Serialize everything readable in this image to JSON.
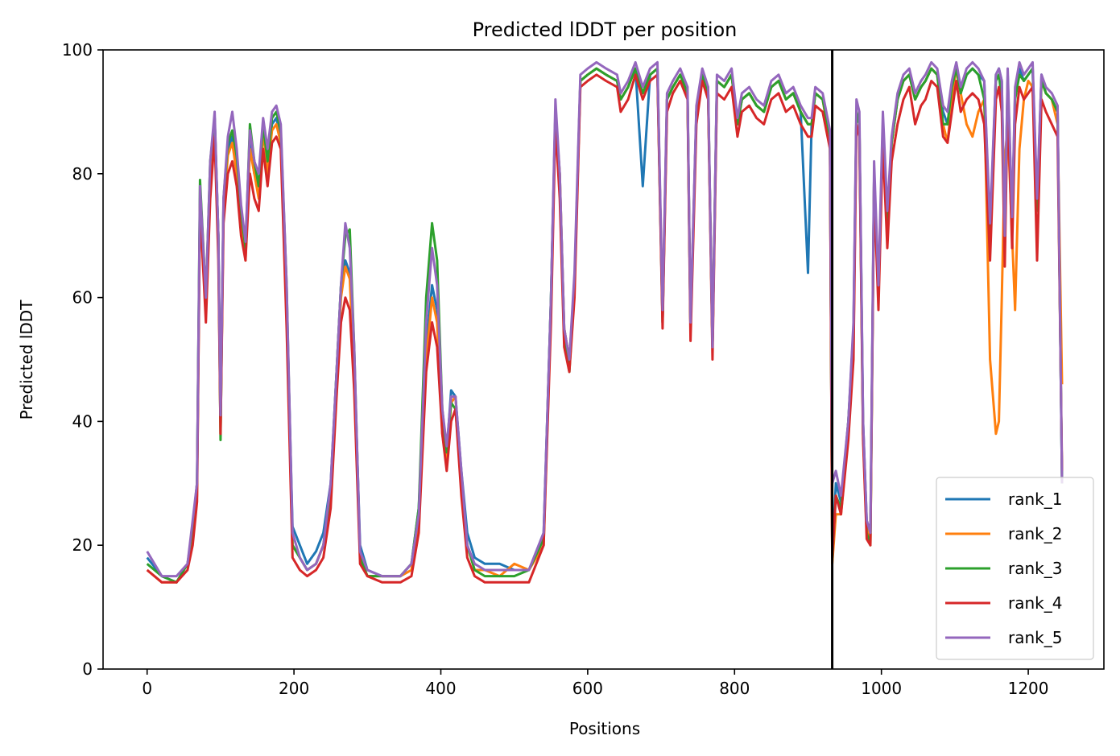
{
  "chart_data": {
    "type": "line",
    "title": "Predicted lDDT per position",
    "xlabel": "Positions",
    "ylabel": "Predicted lDDT",
    "xlim": [
      -60,
      1303
    ],
    "ylim": [
      0,
      100
    ],
    "xticks": [
      0,
      200,
      400,
      600,
      800,
      1000,
      1200
    ],
    "yticks": [
      0,
      20,
      40,
      60,
      80,
      100
    ],
    "grid": false,
    "legend_position": "lower-right",
    "chain_boundary_x": 933,
    "boundary_color": "#000000",
    "x": [
      0,
      20,
      40,
      55,
      62,
      68,
      72,
      80,
      86,
      92,
      97,
      100,
      104,
      110,
      116,
      122,
      128,
      134,
      140,
      146,
      152,
      158,
      164,
      170,
      176,
      182,
      190,
      198,
      208,
      218,
      230,
      240,
      250,
      258,
      264,
      270,
      276,
      282,
      290,
      300,
      320,
      345,
      360,
      370,
      380,
      388,
      395,
      402,
      408,
      414,
      420,
      428,
      436,
      446,
      460,
      480,
      500,
      520,
      540,
      550,
      556,
      562,
      568,
      575,
      582,
      590,
      600,
      612,
      625,
      640,
      645,
      655,
      665,
      675,
      685,
      695,
      702,
      708,
      716,
      726,
      736,
      740,
      748,
      756,
      764,
      770,
      776,
      786,
      796,
      804,
      810,
      820,
      830,
      840,
      850,
      860,
      870,
      880,
      890,
      900,
      905,
      910,
      920,
      930,
      933,
      938,
      945,
      955,
      962,
      966,
      970,
      975,
      980,
      985,
      990,
      996,
      1002,
      1008,
      1014,
      1022,
      1030,
      1038,
      1046,
      1054,
      1060,
      1068,
      1076,
      1084,
      1090,
      1096,
      1102,
      1108,
      1116,
      1124,
      1132,
      1140,
      1148,
      1156,
      1160,
      1164,
      1168,
      1172,
      1178,
      1182,
      1188,
      1194,
      1200,
      1206,
      1212,
      1218,
      1224,
      1232,
      1240,
      1246
    ],
    "series": [
      {
        "name": "rank_1",
        "color": "#1f77b4",
        "values": [
          18,
          15,
          14,
          17,
          22,
          30,
          76,
          60,
          80,
          89,
          70,
          40,
          75,
          84,
          86,
          82,
          74,
          68,
          85,
          80,
          78,
          88,
          82,
          88,
          89,
          86,
          60,
          23,
          20,
          17,
          19,
          22,
          30,
          48,
          62,
          66,
          64,
          50,
          20,
          16,
          15,
          15,
          17,
          26,
          52,
          62,
          58,
          40,
          35,
          45,
          44,
          32,
          22,
          18,
          17,
          17,
          16,
          16,
          22,
          60,
          90,
          80,
          55,
          50,
          62,
          95,
          96,
          97,
          96,
          95,
          92,
          94,
          97,
          78,
          96,
          97,
          56,
          92,
          94,
          96,
          93,
          55,
          90,
          96,
          93,
          52,
          95,
          94,
          96,
          88,
          92,
          93,
          91,
          90,
          94,
          95,
          92,
          93,
          90,
          64,
          88,
          93,
          92,
          86,
          18,
          30,
          27,
          40,
          55,
          90,
          88,
          40,
          24,
          22,
          80,
          60,
          88,
          72,
          85,
          92,
          95,
          96,
          92,
          94,
          95,
          97,
          96,
          90,
          88,
          94,
          97,
          93,
          96,
          97,
          96,
          95,
          70,
          96,
          97,
          95,
          68,
          96,
          72,
          93,
          97,
          95,
          96,
          97,
          75,
          96,
          93,
          92,
          90,
          30
        ]
      },
      {
        "name": "rank_2",
        "color": "#ff7f0e",
        "values": [
          16,
          14,
          14,
          17,
          21,
          28,
          74,
          58,
          78,
          88,
          68,
          38,
          74,
          83,
          85,
          80,
          72,
          66,
          84,
          80,
          76,
          87,
          80,
          87,
          88,
          85,
          58,
          20,
          18,
          16,
          17,
          20,
          28,
          46,
          60,
          65,
          63,
          48,
          18,
          15,
          15,
          15,
          16,
          24,
          50,
          60,
          56,
          38,
          33,
          43,
          44,
          30,
          20,
          16,
          16,
          15,
          17,
          16,
          20,
          58,
          90,
          80,
          55,
          50,
          62,
          95,
          96,
          97,
          96,
          95,
          92,
          94,
          97,
          93,
          96,
          97,
          57,
          92,
          94,
          96,
          93,
          55,
          90,
          96,
          93,
          52,
          95,
          94,
          96,
          88,
          92,
          93,
          91,
          90,
          94,
          95,
          92,
          93,
          90,
          88,
          88,
          93,
          92,
          85,
          17,
          25,
          25,
          38,
          52,
          90,
          88,
          38,
          23,
          20,
          80,
          60,
          88,
          72,
          85,
          92,
          95,
          96,
          92,
          94,
          95,
          97,
          96,
          88,
          85,
          92,
          97,
          93,
          88,
          86,
          90,
          92,
          50,
          38,
          40,
          60,
          82,
          88,
          70,
          58,
          84,
          92,
          95,
          94,
          75,
          95,
          93,
          92,
          88,
          46
        ]
      },
      {
        "name": "rank_3",
        "color": "#2ca02c",
        "values": [
          17,
          15,
          14,
          17,
          23,
          30,
          79,
          60,
          82,
          89,
          70,
          37,
          76,
          85,
          87,
          83,
          74,
          68,
          88,
          82,
          78,
          88,
          82,
          89,
          90,
          87,
          62,
          20,
          18,
          16,
          17,
          20,
          29,
          48,
          62,
          70,
          71,
          52,
          18,
          15,
          15,
          15,
          17,
          26,
          60,
          72,
          66,
          42,
          35,
          43,
          42,
          30,
          20,
          16,
          15,
          15,
          15,
          16,
          21,
          60,
          90,
          78,
          53,
          48,
          62,
          95,
          96,
          97,
          96,
          95,
          92,
          94,
          97,
          93,
          96,
          97,
          56,
          92,
          94,
          96,
          93,
          55,
          90,
          96,
          93,
          52,
          95,
          94,
          96,
          88,
          92,
          93,
          91,
          90,
          94,
          95,
          92,
          93,
          90,
          88,
          88,
          93,
          92,
          86,
          18,
          28,
          26,
          40,
          54,
          90,
          88,
          38,
          22,
          20,
          80,
          60,
          88,
          72,
          85,
          92,
          95,
          96,
          92,
          94,
          95,
          97,
          96,
          88,
          88,
          94,
          97,
          93,
          96,
          97,
          96,
          92,
          70,
          95,
          96,
          92,
          70,
          95,
          72,
          92,
          96,
          95,
          96,
          97,
          74,
          95,
          93,
          92,
          90,
          30
        ]
      },
      {
        "name": "rank_4",
        "color": "#d62728",
        "values": [
          16,
          14,
          14,
          16,
          20,
          27,
          75,
          56,
          76,
          86,
          66,
          38,
          72,
          80,
          82,
          78,
          70,
          66,
          80,
          76,
          74,
          84,
          78,
          85,
          86,
          84,
          55,
          18,
          16,
          15,
          16,
          18,
          26,
          44,
          56,
          60,
          58,
          45,
          17,
          15,
          14,
          14,
          15,
          22,
          48,
          56,
          52,
          38,
          32,
          40,
          42,
          28,
          18,
          15,
          14,
          14,
          14,
          14,
          20,
          56,
          88,
          76,
          52,
          48,
          60,
          94,
          95,
          96,
          95,
          94,
          90,
          92,
          96,
          92,
          95,
          96,
          55,
          90,
          93,
          95,
          92,
          53,
          88,
          95,
          92,
          50,
          93,
          92,
          94,
          86,
          90,
          91,
          89,
          88,
          92,
          93,
          90,
          91,
          88,
          86,
          86,
          91,
          90,
          84,
          18,
          28,
          25,
          37,
          50,
          88,
          86,
          37,
          21,
          20,
          78,
          58,
          85,
          68,
          82,
          88,
          92,
          94,
          88,
          91,
          92,
          95,
          94,
          86,
          85,
          90,
          95,
          90,
          92,
          93,
          92,
          88,
          66,
          92,
          94,
          90,
          65,
          92,
          68,
          88,
          94,
          92,
          93,
          94,
          66,
          92,
          90,
          88,
          86,
          32
        ]
      },
      {
        "name": "rank_5",
        "color": "#9467bd",
        "values": [
          19,
          15,
          15,
          17,
          24,
          30,
          78,
          60,
          82,
          90,
          70,
          41,
          76,
          86,
          90,
          84,
          75,
          69,
          87,
          82,
          80,
          89,
          84,
          90,
          91,
          88,
          62,
          22,
          18,
          16,
          17,
          20,
          30,
          48,
          62,
          72,
          68,
          52,
          19,
          16,
          15,
          15,
          17,
          25,
          56,
          68,
          62,
          42,
          36,
          44,
          44,
          32,
          20,
          17,
          16,
          16,
          16,
          16,
          22,
          60,
          92,
          80,
          55,
          50,
          64,
          96,
          97,
          98,
          97,
          96,
          93,
          95,
          98,
          94,
          97,
          98,
          58,
          93,
          95,
          97,
          94,
          56,
          91,
          97,
          94,
          52,
          96,
          95,
          97,
          89,
          93,
          94,
          92,
          91,
          95,
          96,
          93,
          94,
          91,
          89,
          89,
          94,
          93,
          87,
          30,
          32,
          28,
          40,
          56,
          92,
          90,
          40,
          24,
          22,
          82,
          62,
          90,
          74,
          86,
          93,
          96,
          97,
          93,
          95,
          96,
          98,
          97,
          91,
          90,
          95,
          98,
          94,
          97,
          98,
          97,
          95,
          72,
          96,
          97,
          95,
          70,
          97,
          73,
          94,
          98,
          96,
          97,
          98,
          76,
          96,
          94,
          93,
          91,
          30
        ]
      }
    ]
  }
}
